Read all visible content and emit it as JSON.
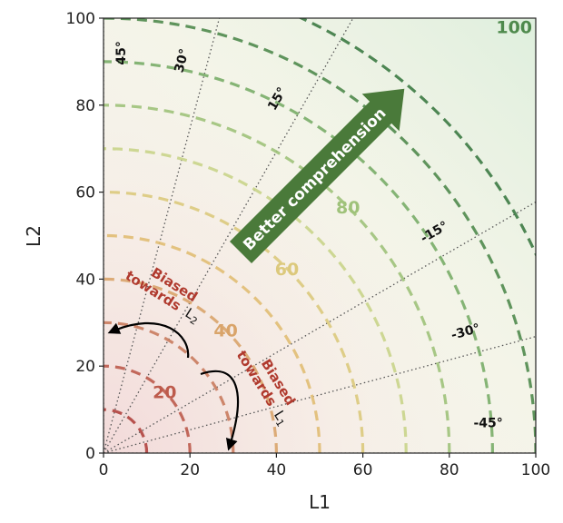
{
  "chart_data": {
    "type": "scatter",
    "xlabel": "L1",
    "ylabel": "L2",
    "xlim": [
      0,
      100
    ],
    "ylim": [
      0,
      100
    ],
    "xticks": [
      "0",
      "20",
      "40",
      "60",
      "80",
      "100"
    ],
    "yticks": [
      "0",
      "20",
      "40",
      "60",
      "80",
      "100"
    ],
    "grid": false,
    "contour_levels": [
      {
        "r": 10,
        "color": "#b0433e",
        "label": ""
      },
      {
        "r": 20,
        "color": "#bd5b4c",
        "label": "20"
      },
      {
        "r": 30,
        "color": "#c97b5e",
        "label": ""
      },
      {
        "r": 40,
        "color": "#d9a46a",
        "label": "40"
      },
      {
        "r": 50,
        "color": "#e1bd73",
        "label": ""
      },
      {
        "r": 60,
        "color": "#dcc97c",
        "label": "60"
      },
      {
        "r": 70,
        "color": "#c9d489",
        "label": ""
      },
      {
        "r": 80,
        "color": "#9fc27a",
        "label": "80"
      },
      {
        "r": 90,
        "color": "#79ad68",
        "label": ""
      },
      {
        "r": 100,
        "color": "#4f8a4d",
        "label": "100"
      },
      {
        "r": 110,
        "color": "#3c7a42",
        "label": ""
      }
    ],
    "angle_lines": [
      {
        "label": "45°",
        "offset_deg": 45
      },
      {
        "label": "30°",
        "offset_deg": 30
      },
      {
        "label": "15°",
        "offset_deg": 15
      },
      {
        "label": "-15°",
        "offset_deg": -15
      },
      {
        "label": "-30°",
        "offset_deg": -30
      },
      {
        "label": "-45°",
        "offset_deg": -45
      }
    ],
    "annotations": {
      "arrow_text": "Better comprehension",
      "biased_l2": [
        "Biased",
        "towards",
        "L",
        "2"
      ],
      "biased_l1": [
        "Biased",
        "towards",
        "L",
        "1"
      ]
    },
    "colors": {
      "arrow": "#4a7a3a",
      "biased_text": "#b03a2e",
      "angle_line": "#555555"
    }
  }
}
